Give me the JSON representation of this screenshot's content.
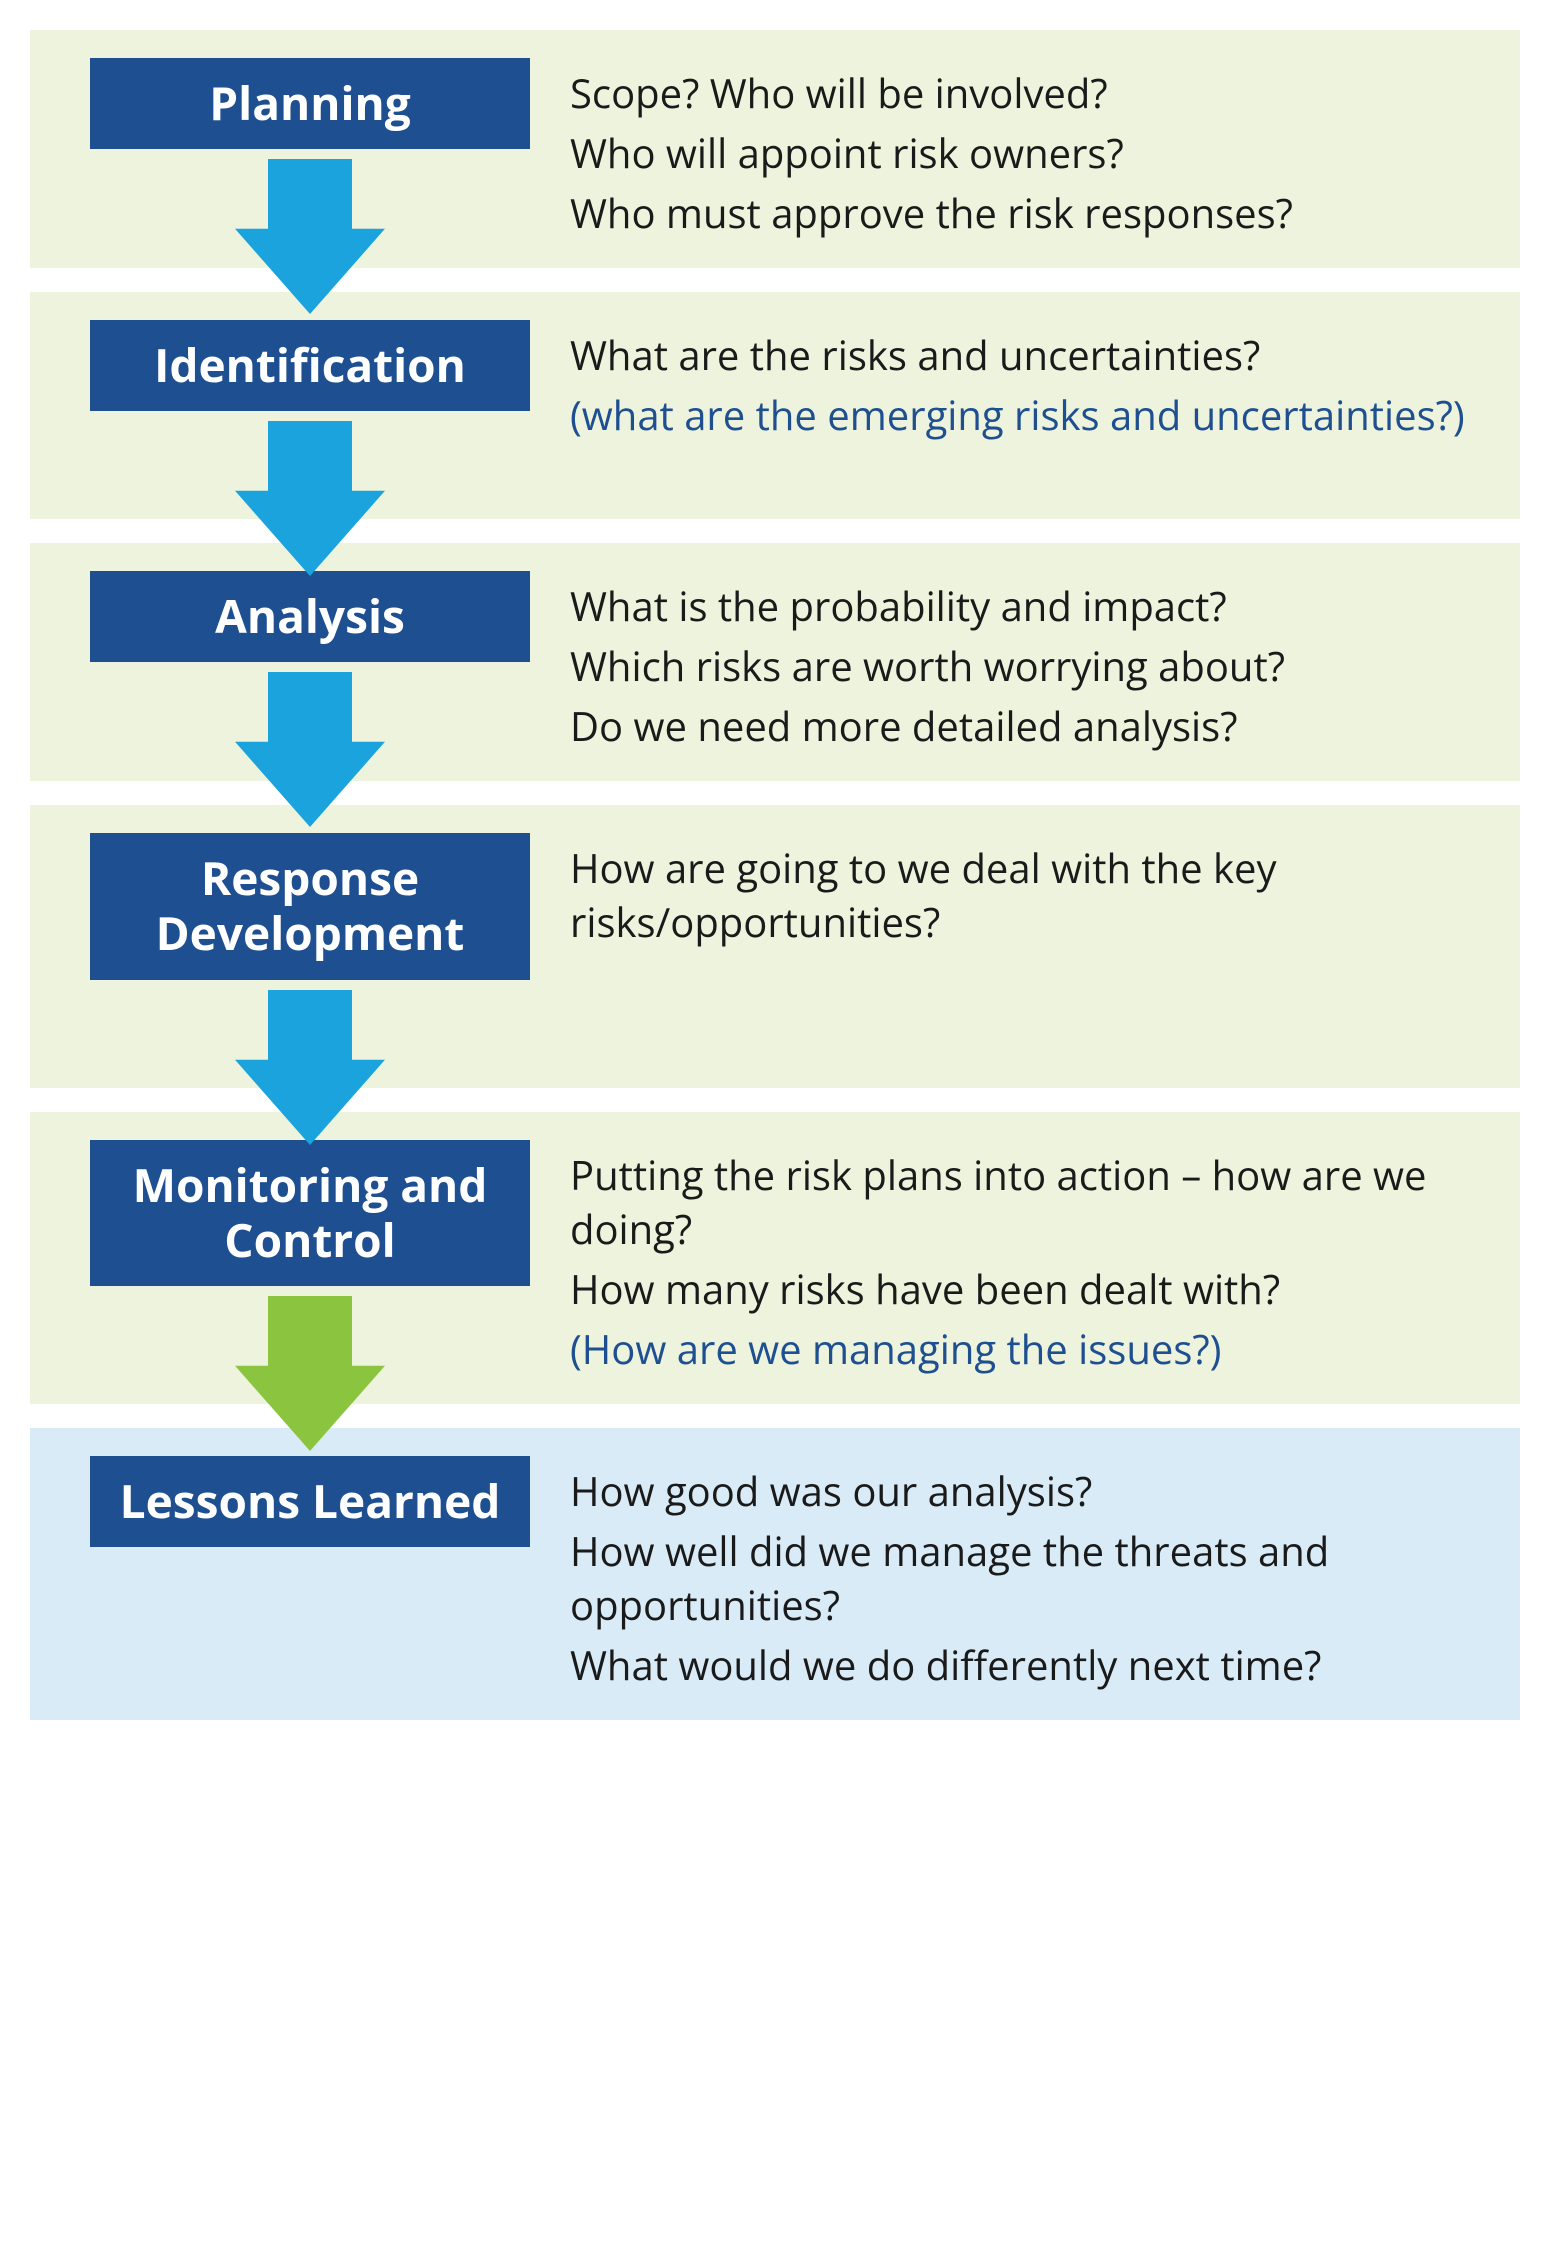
{
  "colors": {
    "box_bg": "#1d4f91",
    "box_text": "#ffffff",
    "body_text": "#1a1a1a",
    "accent_text": "#1d4f91",
    "panel_green": "#edf3dc",
    "panel_blue": "#d8ebf6",
    "arrow_cyan": "#1aa3dd",
    "arrow_green": "#8bc53f"
  },
  "layout": {
    "title_fontsize": 46,
    "body_fontsize": 40,
    "block_gap": 24,
    "arrow_width": 150,
    "arrow_height": 155,
    "left_col_width": 440
  },
  "stages": [
    {
      "id": "planning",
      "title": "Planning",
      "panel_color": "#edf3dc",
      "arrow_color": "#1aa3dd",
      "arrow_overflow": true,
      "questions": [
        {
          "text": "Scope? Who will be involved?",
          "color": "#1a1a1a"
        },
        {
          "text": "Who will appoint risk owners?",
          "color": "#1a1a1a"
        },
        {
          "text": "Who must approve the risk responses?",
          "color": "#1a1a1a"
        }
      ]
    },
    {
      "id": "identification",
      "title": "Identification",
      "panel_color": "#edf3dc",
      "arrow_color": "#1aa3dd",
      "arrow_overflow": true,
      "questions": [
        {
          "text": "What are the risks and uncertainties?",
          "color": "#1a1a1a"
        },
        {
          "text": "(what are the emerging risks and uncertainties?)",
          "color": "#1d4f91"
        }
      ]
    },
    {
      "id": "analysis",
      "title": "Analysis",
      "panel_color": "#edf3dc",
      "arrow_color": "#1aa3dd",
      "arrow_overflow": true,
      "questions": [
        {
          "text": "What is the probability and impact?",
          "color": "#1a1a1a"
        },
        {
          "text": "Which risks are worth worrying about?",
          "color": "#1a1a1a"
        },
        {
          "text": "Do we need more detailed analysis?",
          "color": "#1a1a1a"
        }
      ]
    },
    {
      "id": "response-development",
      "title": "Response Development",
      "panel_color": "#edf3dc",
      "arrow_color": "#1aa3dd",
      "arrow_overflow": true,
      "questions": [
        {
          "text": "How are going to we deal with the key risks/opportunities?",
          "color": "#1a1a1a"
        }
      ]
    },
    {
      "id": "monitoring-control",
      "title": "Monitoring and Control",
      "panel_color": "#edf3dc",
      "arrow_color": "#8bc53f",
      "arrow_overflow": true,
      "questions": [
        {
          "text": "Putting the risk plans into action – how are we doing?",
          "color": "#1a1a1a"
        },
        {
          "text": "How many risks have been dealt with?",
          "color": "#1a1a1a"
        },
        {
          "text": "(How are we managing the issues?)",
          "color": "#1d4f91"
        }
      ]
    },
    {
      "id": "lessons-learned",
      "title": "Lessons Learned",
      "panel_color": "#d8ebf6",
      "arrow_color": null,
      "arrow_overflow": false,
      "questions": [
        {
          "text": "How good was our analysis?",
          "color": "#1a1a1a"
        },
        {
          "text": "How well did we manage the threats and opportunities?",
          "color": "#1a1a1a"
        },
        {
          "text": "What would we do differently next time?",
          "color": "#1a1a1a"
        }
      ]
    }
  ]
}
